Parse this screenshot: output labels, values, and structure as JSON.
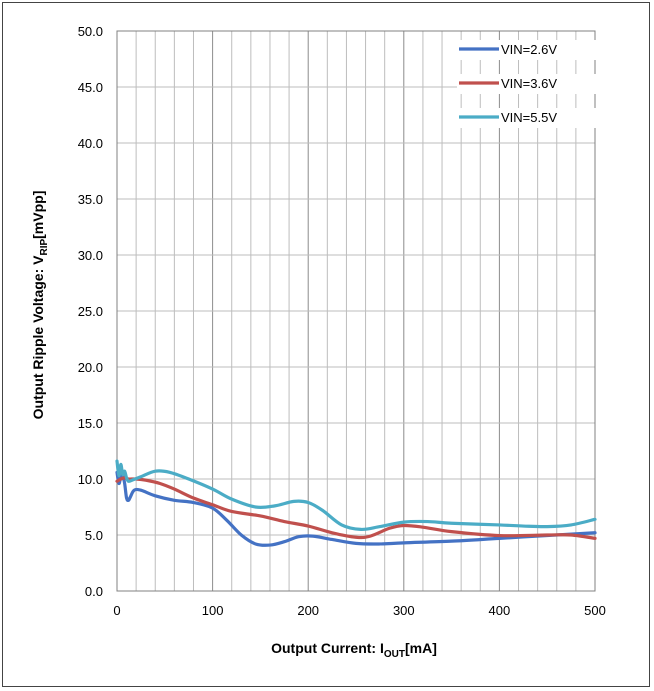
{
  "chart_data": {
    "type": "line",
    "title": "",
    "xlabel": {
      "main": "Output Current: I",
      "sub": "OUT",
      "suffix": "[mA]"
    },
    "ylabel": {
      "main": "Output Ripple Voltage: V",
      "sub": "RIP",
      "suffix": "[mVpp]"
    },
    "xlim": [
      0,
      500
    ],
    "ylim": [
      0,
      50
    ],
    "x_ticks": [
      0,
      100,
      200,
      300,
      400,
      500
    ],
    "y_ticks": [
      "0.0",
      "5.0",
      "10.0",
      "15.0",
      "20.0",
      "25.0",
      "30.0",
      "35.0",
      "40.0",
      "45.0",
      "50.0"
    ],
    "grid": true,
    "legend_position": "top-right",
    "series": [
      {
        "name": "VIN=2.6V",
        "color": "#4472C4",
        "points": [
          [
            0,
            10.6
          ],
          [
            2,
            9.6
          ],
          [
            4,
            10.2
          ],
          [
            6,
            10.3
          ],
          [
            8,
            9.6
          ],
          [
            10,
            8.3
          ],
          [
            12,
            8.1
          ],
          [
            14,
            8.4
          ],
          [
            18,
            9.0
          ],
          [
            25,
            9.0
          ],
          [
            40,
            8.5
          ],
          [
            60,
            8.1
          ],
          [
            80,
            7.9
          ],
          [
            100,
            7.4
          ],
          [
            115,
            6.3
          ],
          [
            130,
            5.0
          ],
          [
            145,
            4.2
          ],
          [
            160,
            4.1
          ],
          [
            175,
            4.4
          ],
          [
            190,
            4.85
          ],
          [
            205,
            4.9
          ],
          [
            225,
            4.6
          ],
          [
            250,
            4.25
          ],
          [
            275,
            4.2
          ],
          [
            300,
            4.3
          ],
          [
            350,
            4.45
          ],
          [
            400,
            4.7
          ],
          [
            450,
            4.95
          ],
          [
            500,
            5.2
          ]
        ]
      },
      {
        "name": "VIN=3.6V",
        "color": "#C0504D",
        "points": [
          [
            0,
            9.8
          ],
          [
            4,
            10.0
          ],
          [
            8,
            10.1
          ],
          [
            12,
            10.0
          ],
          [
            20,
            10.0
          ],
          [
            30,
            9.9
          ],
          [
            45,
            9.6
          ],
          [
            60,
            9.1
          ],
          [
            80,
            8.3
          ],
          [
            100,
            7.7
          ],
          [
            120,
            7.1
          ],
          [
            150,
            6.7
          ],
          [
            175,
            6.2
          ],
          [
            200,
            5.8
          ],
          [
            225,
            5.2
          ],
          [
            250,
            4.8
          ],
          [
            265,
            4.9
          ],
          [
            285,
            5.6
          ],
          [
            300,
            5.85
          ],
          [
            320,
            5.7
          ],
          [
            350,
            5.3
          ],
          [
            400,
            4.95
          ],
          [
            450,
            5.0
          ],
          [
            475,
            5.0
          ],
          [
            500,
            4.7
          ]
        ]
      },
      {
        "name": "VIN=5.5V",
        "color": "#4BACC6",
        "points": [
          [
            0,
            11.6
          ],
          [
            2,
            10.3
          ],
          [
            4,
            11.3
          ],
          [
            6,
            10.4
          ],
          [
            8,
            10.7
          ],
          [
            10,
            10.1
          ],
          [
            12,
            9.8
          ],
          [
            16,
            9.9
          ],
          [
            25,
            10.2
          ],
          [
            40,
            10.7
          ],
          [
            55,
            10.6
          ],
          [
            75,
            10.0
          ],
          [
            100,
            9.1
          ],
          [
            120,
            8.2
          ],
          [
            145,
            7.5
          ],
          [
            165,
            7.6
          ],
          [
            185,
            8.0
          ],
          [
            200,
            7.9
          ],
          [
            215,
            7.2
          ],
          [
            235,
            5.9
          ],
          [
            255,
            5.5
          ],
          [
            275,
            5.75
          ],
          [
            300,
            6.15
          ],
          [
            325,
            6.2
          ],
          [
            350,
            6.05
          ],
          [
            400,
            5.9
          ],
          [
            425,
            5.8
          ],
          [
            450,
            5.75
          ],
          [
            475,
            5.9
          ],
          [
            500,
            6.4
          ]
        ]
      }
    ]
  }
}
